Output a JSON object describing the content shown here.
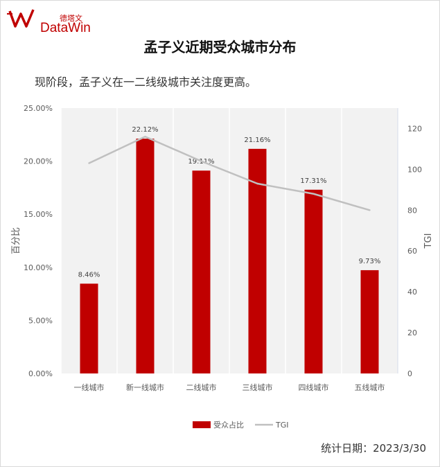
{
  "brand": {
    "name_cn": "德塔文",
    "name_en": "DataWin"
  },
  "title": "孟子义近期受众城市分布",
  "subtitle": "现阶段，孟子义在一二线级城市关注度更高。",
  "footer": "统计日期：2023/3/30",
  "chart_data": {
    "type": "bar",
    "categories": [
      "一线城市",
      "新一线城市",
      "二线城市",
      "三线城市",
      "四线城市",
      "五线城市"
    ],
    "series": [
      {
        "name": "受众占比",
        "type": "bar",
        "axis": "left",
        "color": "#c00000",
        "values": [
          8.46,
          22.12,
          19.11,
          21.16,
          17.31,
          9.73
        ],
        "labels": [
          "8.46%",
          "22.12%",
          "19.11%",
          "21.16%",
          "17.31%",
          "9.73%"
        ]
      },
      {
        "name": "TGI",
        "type": "line",
        "axis": "right",
        "color": "#c0c0c0",
        "values": [
          103,
          116,
          104,
          93,
          88,
          80
        ]
      }
    ],
    "ylabel": "百分比",
    "ylim": [
      0,
      25
    ],
    "yticks": [
      "0.00%",
      "5.00%",
      "10.00%",
      "15.00%",
      "20.00%",
      "25.00%"
    ],
    "y2label": "TGI",
    "y2lim": [
      0,
      130
    ],
    "y2ticks": [
      "0",
      "20",
      "40",
      "60",
      "80",
      "100",
      "120"
    ],
    "grid": "vertical",
    "legend": "bottom"
  }
}
